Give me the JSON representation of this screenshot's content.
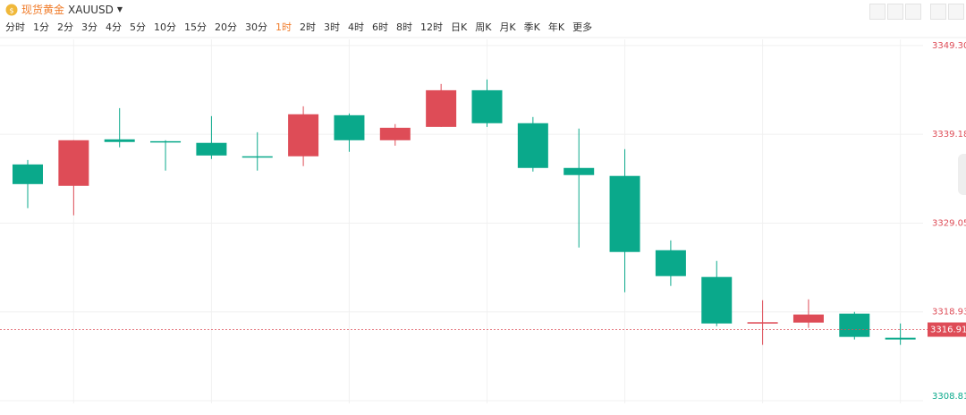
{
  "header": {
    "name": "现货黄金",
    "symbol": "XAUUSD",
    "timeframes": [
      "分时",
      "1分",
      "2分",
      "3分",
      "4分",
      "5分",
      "10分",
      "15分",
      "20分",
      "30分",
      "1时",
      "2时",
      "3时",
      "4时",
      "6时",
      "8时",
      "12时",
      "日K",
      "周K",
      "月K",
      "季K",
      "年K",
      "更多"
    ],
    "active_timeframe": 10
  },
  "chart_data": {
    "type": "candlestick",
    "up_color": "#de4c57",
    "down_color": "#0aa98b",
    "grid": true,
    "categories": [
      null,
      null,
      null,
      null,
      null,
      null,
      null,
      null,
      null,
      null,
      null,
      null,
      null,
      null,
      null,
      null,
      null,
      null,
      null,
      null
    ],
    "open": [
      3335.74,
      3333.3,
      3338.6,
      3338.39,
      3338.2,
      3336.67,
      3336.67,
      3341.35,
      3338.5,
      3340.02,
      3344.2,
      3340.44,
      3335.34,
      3334.43,
      3325.96,
      3322.91,
      3317.71,
      3317.71,
      3318.73,
      3315.98
    ],
    "high": [
      3336.25,
      3338.5,
      3342.16,
      3338.5,
      3341.25,
      3339.41,
      3342.37,
      3341.55,
      3340.34,
      3344.92,
      3345.43,
      3341.15,
      3339.83,
      3337.48,
      3327.08,
      3324.74,
      3320.26,
      3320.36,
      3318.93,
      3317.61
    ],
    "low": [
      3330.76,
      3329.94,
      3337.69,
      3335.04,
      3336.36,
      3335.04,
      3335.55,
      3337.18,
      3337.88,
      3340.02,
      3340.02,
      3334.93,
      3326.27,
      3321.17,
      3321.89,
      3317.3,
      3315.17,
      3317.1,
      3315.78,
      3315.17
    ],
    "close": [
      3333.5,
      3338.5,
      3338.3,
      3338.3,
      3336.76,
      3336.6,
      3341.46,
      3338.5,
      3339.92,
      3344.2,
      3340.44,
      3335.34,
      3334.53,
      3325.76,
      3323.01,
      3317.61,
      3317.75,
      3318.63,
      3316.08,
      3315.78
    ],
    "ylim": [
      3308.5,
      3350.0
    ],
    "yticks": [
      {
        "value": 3349.3,
        "label": "3349.30"
      },
      3339.18,
      3329.05,
      3318.93,
      3308.81
    ],
    "last_price": 3316.91
  }
}
